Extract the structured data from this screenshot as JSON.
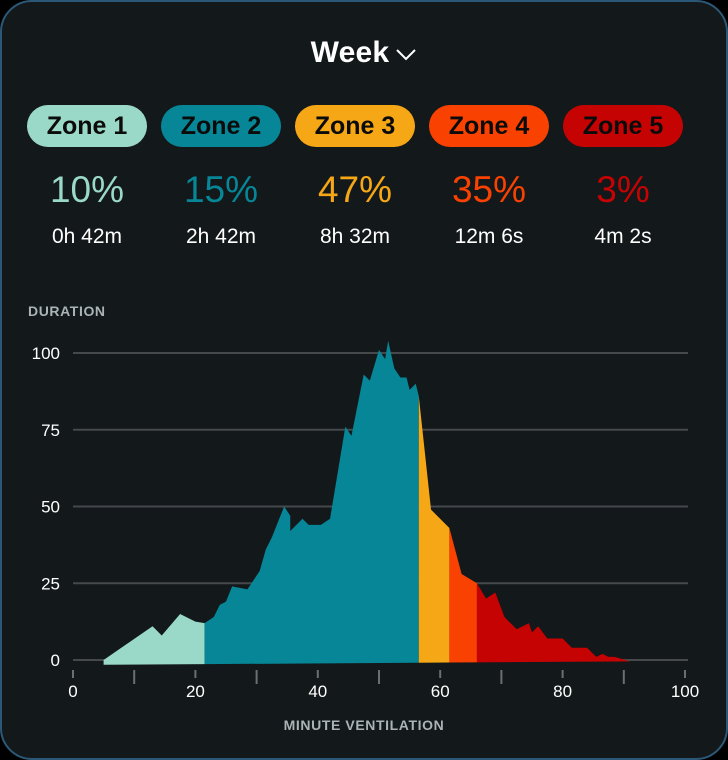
{
  "header": {
    "period_label": "Week",
    "dropdown_icon": "chevron-down-icon"
  },
  "zones": [
    {
      "label": "Zone 1",
      "percent": "10%",
      "duration": "0h 42m",
      "color": "#9ad8c7"
    },
    {
      "label": "Zone 2",
      "percent": "15%",
      "duration": "2h 42m",
      "color": "#068696"
    },
    {
      "label": "Zone 3",
      "percent": "47%",
      "duration": "8h 32m",
      "color": "#f6a716"
    },
    {
      "label": "Zone 4",
      "percent": "35%",
      "duration": "12m 6s",
      "color": "#f94201"
    },
    {
      "label": "Zone 5",
      "percent": "3%",
      "duration": "4m 2s",
      "color": "#c50303"
    }
  ],
  "chart_data": {
    "type": "area",
    "title": "",
    "xlabel": "MINUTE VENTILATION",
    "ylabel": "DURATION",
    "xlim": [
      0,
      100
    ],
    "ylim": [
      0,
      100
    ],
    "x_ticks": [
      0,
      20,
      40,
      60,
      80,
      100
    ],
    "y_ticks": [
      0,
      25,
      50,
      75,
      100
    ],
    "grid": "horizontal",
    "legend": "none",
    "zone_boundaries": [
      21.5,
      56.5,
      61.5,
      66
    ],
    "series": [
      {
        "name": "Zone 1",
        "color": "#9ad8c7",
        "points": [
          [
            5,
            0
          ],
          [
            13,
            11
          ],
          [
            14.5,
            8
          ],
          [
            17.5,
            15
          ],
          [
            20,
            12.5
          ],
          [
            21.5,
            12
          ]
        ]
      },
      {
        "name": "Zone 2",
        "color": "#068696",
        "points": [
          [
            21.5,
            12
          ],
          [
            23,
            14
          ],
          [
            24,
            18
          ],
          [
            25,
            19
          ],
          [
            26,
            24
          ],
          [
            28.5,
            23
          ],
          [
            30.5,
            29
          ],
          [
            31.5,
            36
          ],
          [
            32.5,
            40
          ],
          [
            34.5,
            50
          ],
          [
            35.5,
            47
          ],
          [
            35.5,
            42
          ],
          [
            37.5,
            46
          ],
          [
            38.5,
            44
          ],
          [
            40.5,
            44
          ],
          [
            42,
            46
          ],
          [
            44.5,
            76
          ],
          [
            45.5,
            73
          ],
          [
            47.5,
            93
          ],
          [
            48.5,
            91
          ],
          [
            50,
            101
          ],
          [
            51,
            98
          ],
          [
            51.5,
            104
          ],
          [
            52.5,
            95
          ],
          [
            53.5,
            92
          ],
          [
            54.5,
            92
          ],
          [
            55,
            88
          ],
          [
            56,
            90
          ],
          [
            56.5,
            86
          ]
        ]
      },
      {
        "name": "Zone 3",
        "color": "#f6a716",
        "points": [
          [
            56.5,
            86
          ],
          [
            58.5,
            49
          ],
          [
            61.5,
            43
          ]
        ]
      },
      {
        "name": "Zone 4",
        "color": "#f94201",
        "points": [
          [
            61.5,
            43
          ],
          [
            63.5,
            28
          ],
          [
            66,
            25
          ]
        ]
      },
      {
        "name": "Zone 5",
        "color": "#c50303",
        "points": [
          [
            66,
            25
          ],
          [
            67.5,
            20
          ],
          [
            69,
            22
          ],
          [
            70.5,
            14
          ],
          [
            72.5,
            10
          ],
          [
            74.5,
            12
          ],
          [
            75,
            9
          ],
          [
            76,
            11
          ],
          [
            77.5,
            7
          ],
          [
            80,
            7
          ],
          [
            81.5,
            4
          ],
          [
            84,
            4
          ],
          [
            85.5,
            1
          ],
          [
            86.5,
            2
          ],
          [
            87.5,
            1
          ],
          [
            88.5,
            1
          ],
          [
            91,
            -1
          ],
          [
            99,
            -4
          ]
        ]
      }
    ]
  }
}
